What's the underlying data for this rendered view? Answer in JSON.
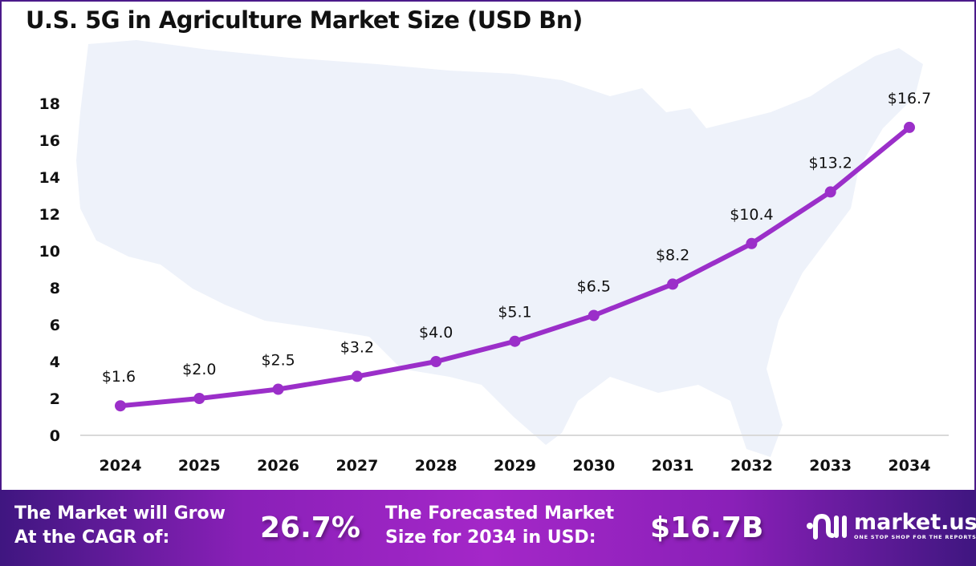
{
  "title": "U.S. 5G in Agriculture Market Size (USD Bn)",
  "colors": {
    "line": "#9b2fc9",
    "marker": "#9b2fc9",
    "border": "#4b1a8a",
    "footer_start": "#3f1680",
    "footer_mid": "#a427c8",
    "map_fill": "#eef2fa",
    "axis_line": "#d9d9d9"
  },
  "chart_data": {
    "type": "line",
    "title": "U.S. 5G in Agriculture Market Size (USD Bn)",
    "xlabel": "",
    "ylabel": "",
    "categories": [
      "2024",
      "2025",
      "2026",
      "2027",
      "2028",
      "2029",
      "2030",
      "2031",
      "2032",
      "2033",
      "2034"
    ],
    "series": [
      {
        "name": "Market Size (USD Bn)",
        "values": [
          1.6,
          2.0,
          2.5,
          3.2,
          4.0,
          5.1,
          6.5,
          8.2,
          10.4,
          13.2,
          16.7
        ],
        "data_labels": [
          "$1.6",
          "$2.0",
          "$2.5",
          "$3.2",
          "$4.0",
          "$5.1",
          "$6.5",
          "$8.2",
          "$10.4",
          "$13.2",
          "$16.7"
        ]
      }
    ],
    "yticks": [
      0,
      2,
      4,
      6,
      8,
      10,
      12,
      14,
      16,
      18
    ],
    "ylim": [
      0,
      18
    ],
    "grid": false,
    "legend": "none",
    "background": "faint U.S. map silhouette"
  },
  "footer": {
    "cagr_label_line1": "The Market will Grow",
    "cagr_label_line2": "At the CAGR of:",
    "cagr_value": "26.7%",
    "forecast_label_line1": "The Forecasted Market",
    "forecast_label_line2": "Size for 2034 in USD:",
    "forecast_value": "$16.7B",
    "brand_name": "market.us",
    "brand_tagline": "ONE STOP SHOP FOR THE REPORTS"
  }
}
